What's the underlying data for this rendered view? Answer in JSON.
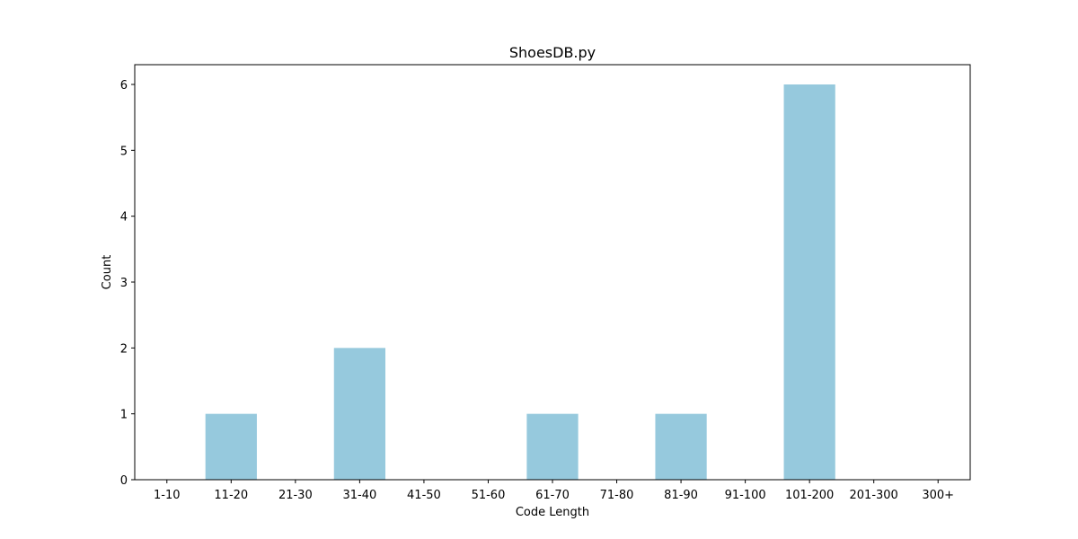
{
  "chart_data": {
    "type": "bar",
    "title": "ShoesDB.py",
    "xlabel": "Code Length",
    "ylabel": "Count",
    "categories": [
      "1-10",
      "11-20",
      "21-30",
      "31-40",
      "41-50",
      "51-60",
      "61-70",
      "71-80",
      "81-90",
      "91-100",
      "101-200",
      "201-300",
      "300+"
    ],
    "values": [
      0,
      1,
      0,
      2,
      0,
      0,
      1,
      0,
      1,
      0,
      6,
      0,
      0
    ],
    "ylim": [
      0,
      6.3
    ],
    "yticks": [
      0,
      1,
      2,
      3,
      4,
      5,
      6
    ],
    "grid": false,
    "bar_color": "#96c9dd"
  }
}
